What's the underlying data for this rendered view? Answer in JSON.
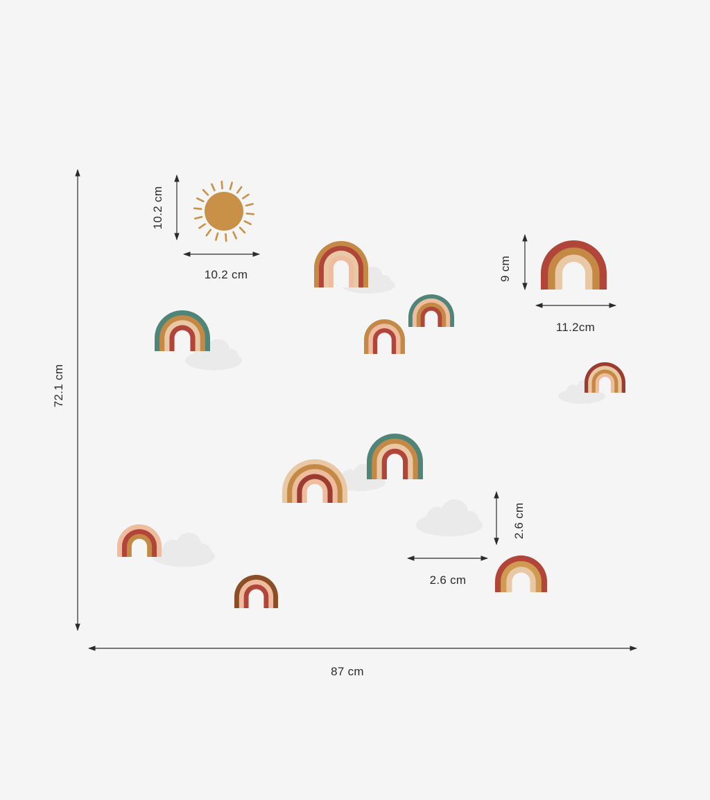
{
  "dimensions": {
    "overall_height": "72.1 cm",
    "overall_width": "87 cm",
    "sun_height": "10.2 cm",
    "sun_width": "10.2 cm",
    "large_rainbow_height": "9 cm",
    "large_rainbow_width": "11.2cm",
    "small_rainbow_height": "2.6 cm",
    "small_rainbow_width": "2.6 cm"
  },
  "colors": {
    "background": "#f5f5f5",
    "terracotta": "#b1453a",
    "rust": "#9c3b30",
    "ochre": "#c48a45",
    "mustard": "#d09a51",
    "sand": "#e9c8a6",
    "blush": "#eebc9f",
    "teal": "#4f8578",
    "brown": "#8c4e26",
    "sun": "#c99047",
    "cloud": "#e9e9e9",
    "line": "#2b2b2b"
  },
  "stickers": {
    "sun_icon": "sun",
    "rainbow_icon": "rainbow",
    "cloud_icon": "cloud"
  }
}
